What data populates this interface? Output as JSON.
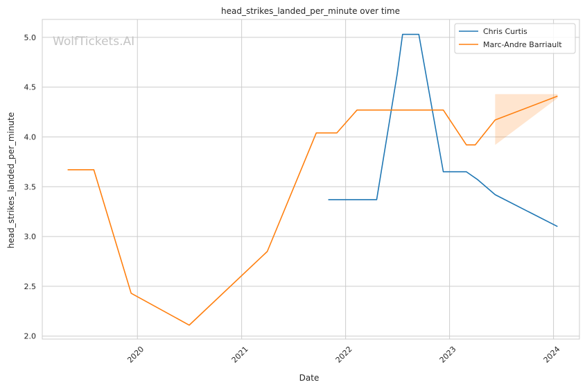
{
  "chart_data": {
    "type": "line",
    "title": "head_strikes_landed_per_minute over time",
    "xlabel": "Date",
    "ylabel": "head_strikes_landed_per_minute",
    "watermark": "WolfTickets.AI",
    "xlim": [
      "2019-02-01",
      "2024-04-01"
    ],
    "ylim": [
      1.97,
      5.18
    ],
    "x_ticks": [
      "2020-01-01",
      "2021-01-01",
      "2022-01-01",
      "2023-01-01",
      "2024-01-01"
    ],
    "x_tick_labels": [
      "2020",
      "2021",
      "2022",
      "2023",
      "2024"
    ],
    "y_ticks": [
      2.0,
      2.5,
      3.0,
      3.5,
      4.0,
      4.5,
      5.0
    ],
    "y_tick_labels": [
      "2.0",
      "2.5",
      "3.0",
      "3.5",
      "4.0",
      "4.5",
      "5.0"
    ],
    "grid": true,
    "legend_position": "top-right",
    "series": [
      {
        "name": "Chris Curtis",
        "color": "#1f77b4",
        "points": [
          [
            "2021-11-01",
            3.37
          ],
          [
            "2022-04-20",
            3.37
          ],
          [
            "2022-07-01",
            4.63
          ],
          [
            "2022-07-20",
            5.03
          ],
          [
            "2022-09-15",
            5.03
          ],
          [
            "2022-12-10",
            3.65
          ],
          [
            "2023-03-01",
            3.65
          ],
          [
            "2023-04-10",
            3.57
          ],
          [
            "2023-06-10",
            3.42
          ],
          [
            "2024-01-15",
            3.1
          ]
        ]
      },
      {
        "name": "Marc-Andre Barriault",
        "color": "#ff7f0e",
        "points": [
          [
            "2019-05-01",
            3.67
          ],
          [
            "2019-08-01",
            3.67
          ],
          [
            "2019-12-10",
            2.43
          ],
          [
            "2020-07-01",
            2.11
          ],
          [
            "2021-04-01",
            2.85
          ],
          [
            "2021-09-20",
            4.04
          ],
          [
            "2021-12-01",
            4.04
          ],
          [
            "2022-02-10",
            4.27
          ],
          [
            "2022-07-10",
            4.27
          ],
          [
            "2022-12-10",
            4.27
          ],
          [
            "2023-03-01",
            3.92
          ],
          [
            "2023-04-01",
            3.92
          ],
          [
            "2023-06-10",
            4.17
          ],
          [
            "2024-01-15",
            4.41
          ]
        ],
        "band": [
          [
            "2023-06-10",
            3.92,
            4.43
          ],
          [
            "2024-01-15",
            4.39,
            4.43
          ]
        ]
      }
    ]
  }
}
